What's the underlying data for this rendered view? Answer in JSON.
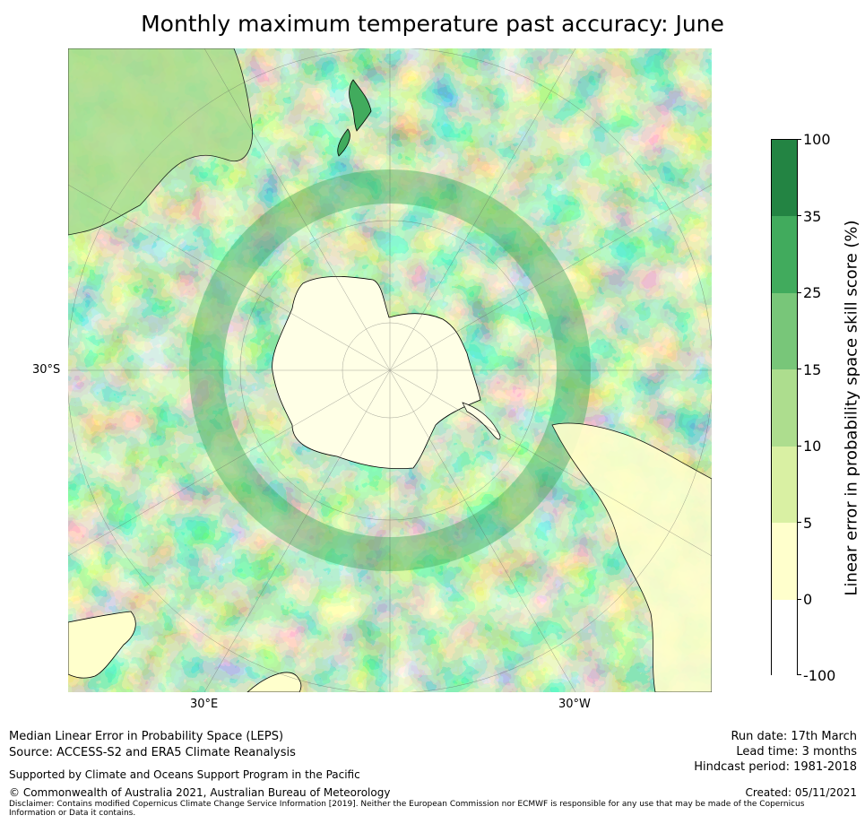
{
  "title": "Monthly maximum temperature past accuracy: June",
  "map": {
    "lat_label": "30°S",
    "lon_labels": [
      "30°E",
      "30°W"
    ]
  },
  "colorbar": {
    "title": "Linear error in probability space skill score (%)",
    "ticks": [
      "100",
      "35",
      "25",
      "15",
      "10",
      "5",
      "0",
      "-100"
    ],
    "colors": [
      "#238443",
      "#41ab5d",
      "#78c679",
      "#addd8e",
      "#d9f0a3",
      "#ffffcc",
      "#ffffff"
    ]
  },
  "footer": {
    "left_line1": "Median Linear Error in Probability Space (LEPS)",
    "left_line2": "Source: ACCESS-S2 and ERA5 Climate Reanalysis",
    "support": "Supported by Climate and Oceans Support Program in the Pacific",
    "copyright": "© Commonwealth of Australia 2021, Australian Bureau of Meteorology",
    "disclaimer": "Disclaimer: Contains modified Copernicus Climate Change Service Information [2019]. Neither the European Commission nor ECMWF is responsible for any use that may be made of the Copernicus Information or Data it contains.",
    "run_date": "Run date: 17th March",
    "lead_time": "Lead time: 3 months",
    "hindcast": "Hindcast period: 1981-2018",
    "created": "Created: 05/11/2021"
  }
}
